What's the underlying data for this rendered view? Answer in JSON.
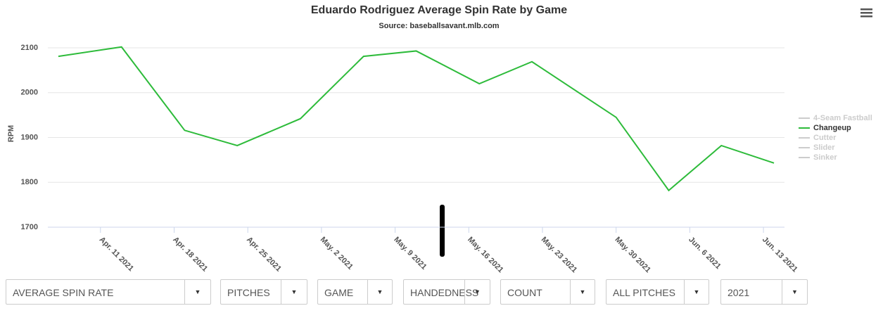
{
  "chart_data": {
    "type": "line",
    "title": "Eduardo Rodriguez Average Spin Rate by Game",
    "subtitle": "Source: baseballsavant.mlb.com",
    "y_label": "RPM",
    "x": [
      "2021-04-07",
      "2021-04-13",
      "2021-04-19",
      "2021-04-24",
      "2021-04-30",
      "2021-05-06",
      "2021-05-11",
      "2021-05-17",
      "2021-05-22",
      "2021-05-30",
      "2021-06-04",
      "2021-06-09",
      "2021-06-14"
    ],
    "series": [
      {
        "name": "Changeup",
        "color": "#2dbb3a",
        "values": [
          2081,
          2102,
          1916,
          1882,
          1942,
          2081,
          2093,
          2020,
          2069,
          1945,
          1782,
          1882,
          1843
        ]
      }
    ],
    "legend": [
      {
        "name": "4-Seam Fastball",
        "color": "#cccccc"
      },
      {
        "name": "Changeup",
        "color": "#2dbb3a"
      },
      {
        "name": "Cutter",
        "color": "#cccccc"
      },
      {
        "name": "Slider",
        "color": "#cccccc"
      },
      {
        "name": "Sinker",
        "color": "#cccccc"
      }
    ],
    "xlim": [
      "2021-04-06",
      "2021-06-15"
    ],
    "xticks": [
      {
        "value": "2021-04-11",
        "label": "Apr. 11 2021"
      },
      {
        "value": "2021-04-18",
        "label": "Apr. 18 2021"
      },
      {
        "value": "2021-04-25",
        "label": "Apr. 25 2021"
      },
      {
        "value": "2021-05-02",
        "label": "May. 2 2021"
      },
      {
        "value": "2021-05-09",
        "label": "May. 9 2021"
      },
      {
        "value": "2021-05-16",
        "label": "May. 16 2021"
      },
      {
        "value": "2021-05-23",
        "label": "May. 23 2021"
      },
      {
        "value": "2021-05-30",
        "label": "May. 30 2021"
      },
      {
        "value": "2021-06-06",
        "label": "Jun. 6 2021"
      },
      {
        "value": "2021-06-13",
        "label": "Jun. 13 2021"
      }
    ],
    "ylim": [
      1700,
      2100
    ],
    "yticks": [
      1700,
      1800,
      1900,
      2000,
      2100
    ],
    "grid": true
  },
  "controls": [
    "AVERAGE SPIN RATE",
    "PITCHES",
    "GAME",
    "HANDEDNESS",
    "COUNT",
    "ALL PITCHES",
    "2021"
  ]
}
